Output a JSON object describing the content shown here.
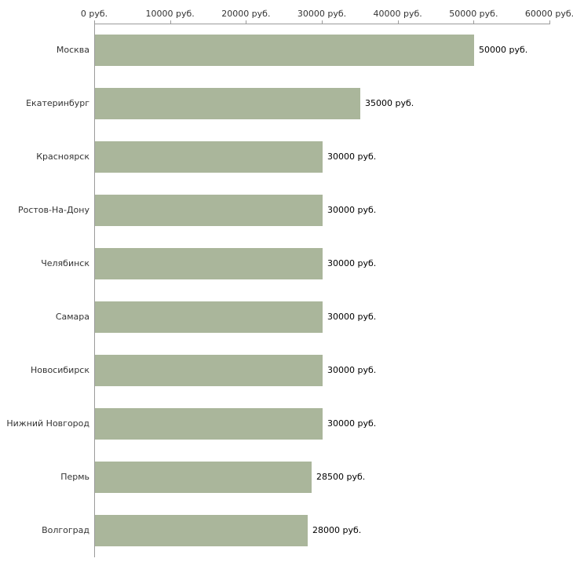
{
  "chart_data": {
    "type": "bar",
    "orientation": "horizontal",
    "categories": [
      "Москва",
      "Екатеринбург",
      "Красноярск",
      "Ростов-На-Дону",
      "Челябинск",
      "Самара",
      "Новосибирск",
      "Нижний Новгород",
      "Пермь",
      "Волгоград"
    ],
    "values": [
      50000,
      35000,
      30000,
      30000,
      30000,
      30000,
      30000,
      30000,
      28500,
      28000
    ],
    "value_labels": [
      "50000 руб.",
      "35000 руб.",
      "30000 руб.",
      "30000 руб.",
      "30000 руб.",
      "30000 руб.",
      "30000 руб.",
      "30000 руб.",
      "28500 руб.",
      "28000 руб."
    ],
    "x_ticks": [
      0,
      10000,
      20000,
      30000,
      40000,
      50000,
      60000
    ],
    "x_tick_labels": [
      "0 руб.",
      "10000 руб.",
      "20000 руб.",
      "30000 руб.",
      "40000 руб.",
      "50000 руб.",
      "60000 руб."
    ],
    "xlim": [
      0,
      60000
    ],
    "grid": false,
    "legend": "none",
    "bar_color": "#aab69b",
    "axis_color": "#9b9b9b",
    "label_color": "#333333"
  }
}
